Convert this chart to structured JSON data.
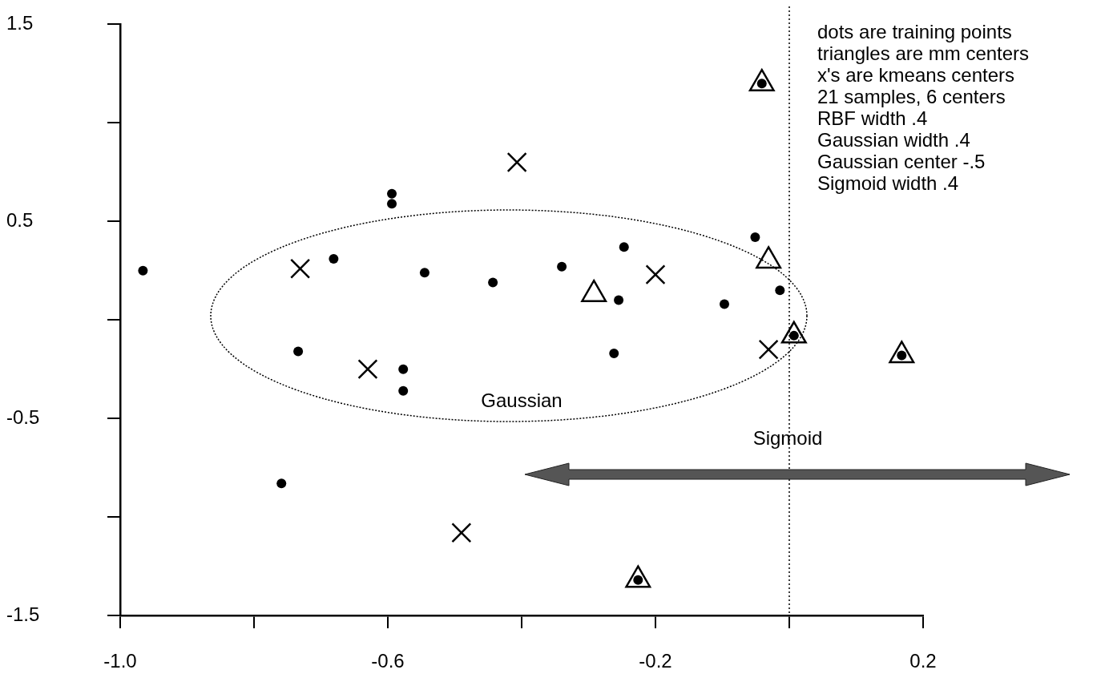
{
  "chart_data": {
    "type": "scatter",
    "xlim": [
      -1.0,
      0.2
    ],
    "ylim": [
      -1.5,
      1.5
    ],
    "xticks": [
      {
        "value": -1.0,
        "label": "-1.0"
      },
      {
        "value": -0.8,
        "label": null
      },
      -0.6,
      {
        "value": -0.4,
        "label": null
      },
      -0.2,
      {
        "value": 0,
        "label": null
      },
      0.2
    ],
    "yticks": [
      -1.5,
      {
        "value": -1,
        "label": null
      },
      -0.5,
      {
        "value": 0,
        "label": null
      },
      0.5,
      {
        "value": 1,
        "label": null
      },
      1.5
    ],
    "grid": false,
    "legend": false,
    "series": [
      {
        "color": "#000000",
        "marker": "triangle",
        "x": [
          -0.041,
          0.168,
          -0.226,
          0.007,
          -0.292,
          -0.031
        ],
        "values": [
          1.2,
          -0.18,
          -1.32,
          -0.08,
          0.13,
          0.3
        ]
      },
      {
        "color": "#000000",
        "marker": "circle",
        "x": [
          -0.966,
          -0.594,
          -0.594,
          -0.681,
          -0.545,
          -0.443,
          -0.34,
          -0.247,
          -0.255,
          -0.051,
          -0.097,
          -0.014,
          -0.734,
          -0.262,
          -0.577,
          -0.577,
          -0.759,
          -0.041,
          0.168,
          -0.226,
          0.007
        ],
        "values": [
          0.25,
          0.64,
          0.59,
          0.31,
          0.24,
          0.19,
          0.27,
          0.37,
          0.1,
          0.42,
          0.08,
          0.15,
          -0.16,
          -0.17,
          -0.25,
          -0.36,
          -0.83,
          1.2,
          -0.18,
          -1.32,
          -0.08
        ]
      },
      {
        "color": "#000000",
        "marker": "cross",
        "x": [
          -0.407,
          -0.731,
          -0.2,
          -0.63,
          -0.031,
          -0.49
        ],
        "values": [
          0.8,
          0.26,
          0.23,
          -0.25,
          -0.15,
          -1.08
        ]
      }
    ],
    "ref_lines": [
      {
        "axis": "x",
        "value": 0,
        "color": "#000000",
        "line_style": "dotted"
      }
    ],
    "annotations": [
      "dots are training points",
      "triangles are mm centers",
      "x's are kmeans centers",
      "21 samples, 6 centers",
      "RBF width .4",
      "Gaussian width .4",
      "Gaussian center -.5",
      "Sigmoid width .4",
      "Gaussian",
      "Sigmoid"
    ]
  }
}
